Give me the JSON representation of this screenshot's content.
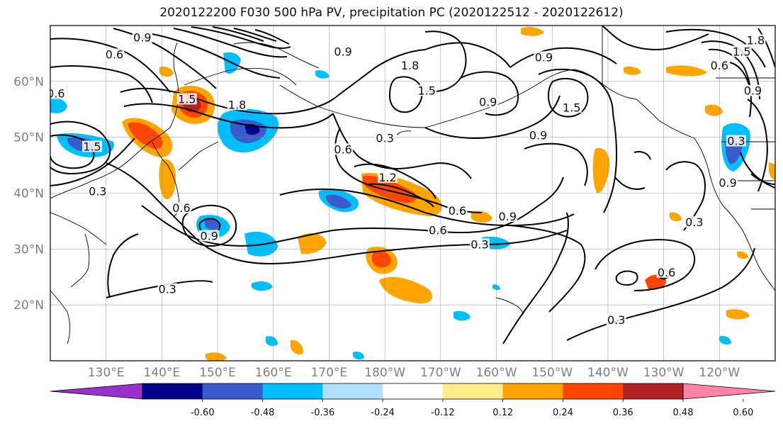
{
  "title": "2020122200 F030 500 hPa PV, precipitation PC (2020122512 - 2020122612)",
  "map": {
    "lon_range": [
      120,
      250
    ],
    "lat_range": [
      10,
      70
    ],
    "lat_ticks": [
      {
        "lat": 20,
        "label": "20°N"
      },
      {
        "lat": 30,
        "label": "30°N"
      },
      {
        "lat": 40,
        "label": "40°N"
      },
      {
        "lat": 50,
        "label": "50°N"
      },
      {
        "lat": 60,
        "label": "60°N"
      }
    ],
    "lon_ticks": [
      {
        "lon": 130,
        "label": "130°E"
      },
      {
        "lon": 140,
        "label": "140°E"
      },
      {
        "lon": 150,
        "label": "150°E"
      },
      {
        "lon": 160,
        "label": "160°E"
      },
      {
        "lon": 170,
        "label": "170°E"
      },
      {
        "lon": 180,
        "label": "180°W"
      },
      {
        "lon": 190,
        "label": "170°W"
      },
      {
        "lon": 200,
        "label": "160°W"
      },
      {
        "lon": 210,
        "label": "150°W"
      },
      {
        "lon": 220,
        "label": "140°W"
      },
      {
        "lon": 230,
        "label": "130°W"
      },
      {
        "lon": 240,
        "label": "120°W"
      }
    ],
    "contour_labels": [
      {
        "lon": 131.5,
        "lat": 64.5,
        "text": "0.6"
      },
      {
        "lon": 136.5,
        "lat": 67.5,
        "text": "0.9"
      },
      {
        "lon": 121,
        "lat": 57.5,
        "text": "0.6"
      },
      {
        "lon": 144.5,
        "lat": 56.5,
        "text": "1.5"
      },
      {
        "lon": 153.5,
        "lat": 55.5,
        "text": "1.8"
      },
      {
        "lon": 172.5,
        "lat": 65,
        "text": "0.9"
      },
      {
        "lon": 184.5,
        "lat": 62.5,
        "text": "1.8"
      },
      {
        "lon": 198.5,
        "lat": 56,
        "text": "0.9"
      },
      {
        "lon": 208.5,
        "lat": 64,
        "text": "0.9"
      },
      {
        "lon": 187.5,
        "lat": 58,
        "text": "1.5"
      },
      {
        "lon": 213.5,
        "lat": 55,
        "text": "1.5"
      },
      {
        "lon": 207.5,
        "lat": 50,
        "text": "0.9"
      },
      {
        "lon": 180,
        "lat": 49.5,
        "text": "0.3"
      },
      {
        "lon": 172.5,
        "lat": 47.5,
        "text": "0.6"
      },
      {
        "lon": 180.5,
        "lat": 42.5,
        "text": "1.2"
      },
      {
        "lon": 127.5,
        "lat": 48,
        "text": "1.5"
      },
      {
        "lon": 128.5,
        "lat": 40,
        "text": "0.3"
      },
      {
        "lon": 143.5,
        "lat": 37,
        "text": "0.6"
      },
      {
        "lon": 148.5,
        "lat": 32,
        "text": "0.9"
      },
      {
        "lon": 193,
        "lat": 36.5,
        "text": "0.6"
      },
      {
        "lon": 189.5,
        "lat": 33,
        "text": "0.6"
      },
      {
        "lon": 202,
        "lat": 35.5,
        "text": "0.9"
      },
      {
        "lon": 197,
        "lat": 30.5,
        "text": "0.3"
      },
      {
        "lon": 141,
        "lat": 22.5,
        "text": "0.3"
      },
      {
        "lon": 221.5,
        "lat": 17,
        "text": "0.3"
      },
      {
        "lon": 230.5,
        "lat": 25.5,
        "text": "0.6"
      },
      {
        "lon": 235.5,
        "lat": 34.5,
        "text": "0.3"
      },
      {
        "lon": 241.5,
        "lat": 41.5,
        "text": "0.9"
      },
      {
        "lon": 243,
        "lat": 49,
        "text": "0.3"
      },
      {
        "lon": 240,
        "lat": 62.5,
        "text": "0.6"
      },
      {
        "lon": 244,
        "lat": 65,
        "text": "1.5"
      },
      {
        "lon": 246.5,
        "lat": 67,
        "text": "1.8"
      },
      {
        "lon": 246,
        "lat": 58,
        "text": "0.9"
      }
    ]
  },
  "colorbar": {
    "colors": [
      "#9932cc",
      "#00008b",
      "#3a5bcd",
      "#00bfff",
      "#b0e2ff",
      "#ffffff",
      "#ffec8b",
      "#ffa500",
      "#ff4500",
      "#b22222",
      "#ff82ab"
    ],
    "tick_labels": [
      "-0.60",
      "-0.48",
      "-0.36",
      "-0.24",
      "-0.12",
      "0.12",
      "0.24",
      "0.36",
      "0.48",
      "0.60"
    ]
  }
}
